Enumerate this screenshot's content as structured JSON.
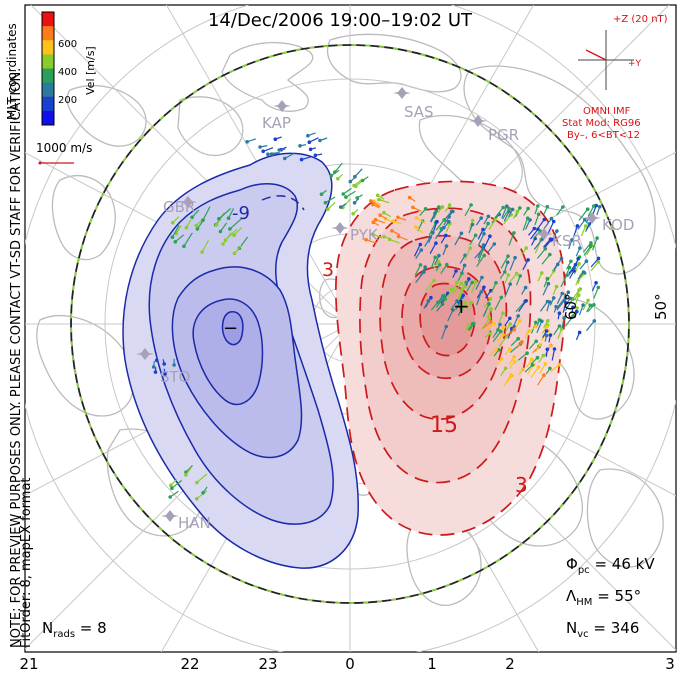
{
  "title": "14/Dec/2006 19:00–19:02 UT",
  "side_note": "NOTE: FOR PREVIEW PURPOSES ONLY. PLEASE CONTACT VT-SD STAFF FOR VERIFICATION.",
  "fit_note": "FitOrder: 8, mapEX format",
  "coord_label": "MLT coordinates",
  "colorbar": {
    "label": "Vel [m/s]",
    "ticks": [
      "600",
      "400",
      "200"
    ],
    "colors": [
      "#ee1111",
      "#ff7a1a",
      "#ffc21a",
      "#8acc2a",
      "#2aa05a",
      "#2a7aa0",
      "#1a40d0",
      "#1010ee"
    ]
  },
  "reference_vector": "1000 m/s",
  "imf": {
    "z_label": "+Z (20 nT)",
    "y_label": "+Y",
    "source": "OMNI IMF",
    "model": "Stat Mod: RG96",
    "condition": "By–, 6<BT<12"
  },
  "stations": [
    "KAP",
    "SAS",
    "PGR",
    "GBR",
    "KOD",
    "KSR",
    "HAN",
    "STO",
    "PYK"
  ],
  "contour_labels": [
    "-9",
    "3",
    "15",
    "3"
  ],
  "polarity_marks": [
    "−",
    "+"
  ],
  "lat_labels": [
    "60°",
    "50°"
  ],
  "mlt_labels": [
    "21",
    "22",
    "23",
    "0",
    "1",
    "2",
    "3"
  ],
  "stats": {
    "phi_symbol": "Φ",
    "phi_sub": "pc",
    "phi_value": " = 46 kV",
    "lambda_symbol": "Λ",
    "lambda_sub": "HM",
    "lambda_value": " = 55°",
    "nvc_symbol": "N",
    "nvc_sub": "vc",
    "nvc_value": " = 346",
    "nrads_symbol": "N",
    "nrads_sub": "rads",
    "nrads_value": " = 8"
  },
  "colors": {
    "negative_cell_fill": "#c8c8f0",
    "negative_contour": "#1a2aa8",
    "positive_cell_fill": "#f4c8c8",
    "positive_contour": "#cc1a1a",
    "hmb_boundary": "#222222",
    "hmb_dash": "#8ad23a",
    "landmass": "#bbbbbb",
    "grid": "#c8c8c8",
    "station": "#a8a0b8",
    "imf_text": "#dd1111"
  }
}
